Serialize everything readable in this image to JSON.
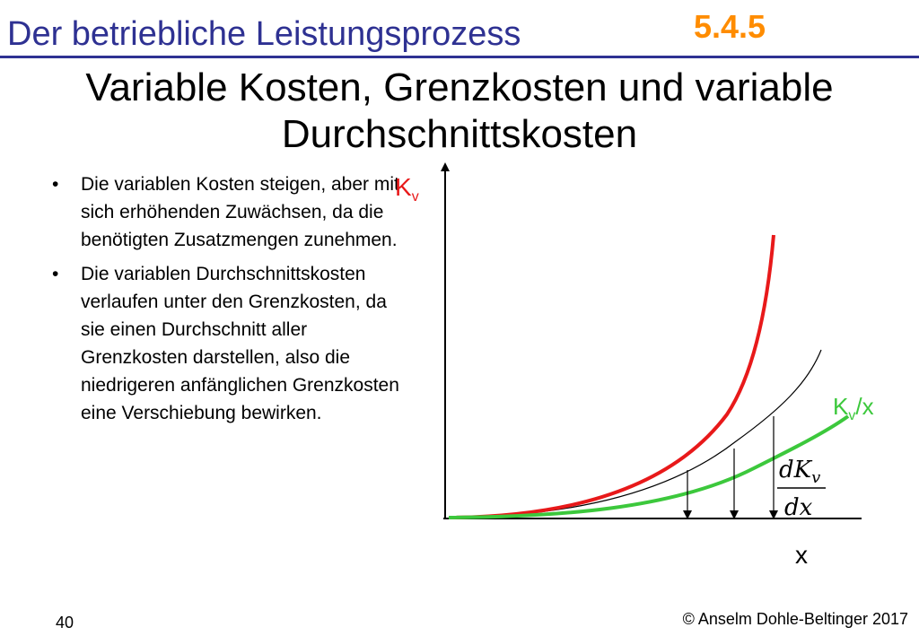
{
  "header": {
    "title": "Der betriebliche Leistungsprozess",
    "section": "5.4.5",
    "accent_color": "#2e3192",
    "section_color": "#ff8c00"
  },
  "slide": {
    "title_line1": "Variable Kosten, Grenzkosten und variable",
    "title_line2": "Durchschnittskosten"
  },
  "bullets": [
    {
      "marker": "•",
      "text": "Die variablen Kosten steigen, aber mit sich erhöhenden Zuwächsen, da die benötigten Zusatzmengen zunehmen."
    },
    {
      "marker": "•",
      "text": "Die variablen Durchschnittskosten verlaufen unter den Grenzkosten, da sie einen Durchschnitt aller Grenzkosten darstellen, also die niedrigeren anfänglichen Grenzkosten eine Verschiebung bewirken."
    }
  ],
  "diagram": {
    "y_axis_label": "K",
    "y_axis_sub": "v",
    "x_axis_label": "x",
    "avg_label_main": "K",
    "avg_label_sub": "v",
    "avg_label_suffix": "/x",
    "marginal_numerator": "dK",
    "marginal_numerator_sub": "v",
    "marginal_denominator": "dx",
    "colors": {
      "variable_costs": "#e8191a",
      "marginal_costs": "#000000",
      "average_costs": "#3cc83c",
      "axis_label": "#e8191a",
      "avg_label": "#3cc83c"
    }
  },
  "footer": {
    "page_number": "40",
    "copyright": "© Anselm Dohle-Beltinger 2017"
  }
}
